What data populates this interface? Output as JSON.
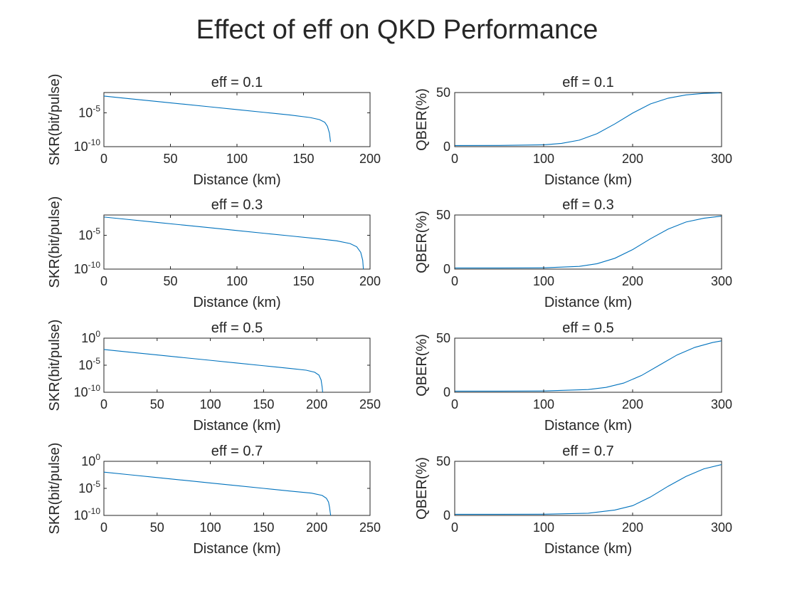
{
  "figure": {
    "title": "Effect of eff on QKD Performance"
  },
  "colors": {
    "line": "#0072BD",
    "axes": "#262626",
    "background": "#ffffff"
  },
  "chart_data": [
    {
      "type": "line",
      "title": "eff = 0.1",
      "xlabel": "Distance (km)",
      "ylabel": "SKR(bit/pulse)",
      "xlim": [
        0,
        200
      ],
      "ylim": [
        1e-10,
        0.01
      ],
      "yscale": "log",
      "xticks": [
        0,
        50,
        100,
        150,
        200
      ],
      "yticks": [
        {
          "value": 1e-10,
          "base": "10",
          "exp": "-10"
        },
        {
          "value": 1e-05,
          "base": "10",
          "exp": "-5"
        }
      ],
      "series": [
        {
          "x": [
            0,
            20,
            40,
            60,
            80,
            100,
            120,
            140,
            155,
            162,
            166,
            168,
            169.5,
            170.3
          ],
          "y": [
            0.003,
            0.00119,
            0.000477,
            0.00019,
            7.6e-05,
            3e-05,
            1.2e-05,
            4.8e-06,
            2e-06,
            1e-06,
            4e-07,
            1e-07,
            1e-08,
            5e-10
          ]
        }
      ]
    },
    {
      "type": "line",
      "title": "eff = 0.1",
      "xlabel": "Distance (km)",
      "ylabel": "QBER(%)",
      "xlim": [
        0,
        300
      ],
      "ylim": [
        0,
        50
      ],
      "yscale": "linear",
      "xticks": [
        0,
        100,
        200,
        300
      ],
      "yticks": [
        0,
        50
      ],
      "series": [
        {
          "x": [
            0,
            50,
            100,
            120,
            140,
            160,
            180,
            200,
            220,
            240,
            260,
            280,
            300
          ],
          "y": [
            1,
            1.1,
            1.7,
            3,
            6,
            12,
            21,
            31,
            39.5,
            44.8,
            47.8,
            49.2,
            49.7
          ]
        }
      ]
    },
    {
      "type": "line",
      "title": "eff = 0.3",
      "xlabel": "Distance (km)",
      "ylabel": "SKR(bit/pulse)",
      "xlim": [
        0,
        200
      ],
      "ylim": [
        1e-10,
        0.01
      ],
      "yscale": "log",
      "xticks": [
        0,
        50,
        100,
        150,
        200
      ],
      "yticks": [
        {
          "value": 1e-10,
          "base": "10",
          "exp": "-10"
        },
        {
          "value": 1e-05,
          "base": "10",
          "exp": "-5"
        }
      ],
      "series": [
        {
          "x": [
            0,
            20,
            40,
            60,
            80,
            100,
            120,
            140,
            160,
            175,
            185,
            190,
            193,
            194.5,
            195
          ],
          "y": [
            0.005,
            0.002,
            0.0008,
            0.00032,
            0.000128,
            5.1e-05,
            2e-05,
            8.1e-06,
            3.2e-06,
            1.5e-06,
            6e-07,
            2e-07,
            3e-08,
            2e-09,
            1e-10
          ]
        }
      ]
    },
    {
      "type": "line",
      "title": "eff = 0.3",
      "xlabel": "Distance (km)",
      "ylabel": "QBER(%)",
      "xlim": [
        0,
        300
      ],
      "ylim": [
        0,
        50
      ],
      "yscale": "linear",
      "xticks": [
        0,
        100,
        200,
        300
      ],
      "yticks": [
        0,
        50
      ],
      "series": [
        {
          "x": [
            0,
            50,
            100,
            140,
            160,
            180,
            200,
            220,
            240,
            260,
            280,
            300
          ],
          "y": [
            1,
            1,
            1.2,
            2.5,
            5,
            10,
            18,
            28,
            37,
            43.5,
            47,
            49
          ]
        }
      ]
    },
    {
      "type": "line",
      "title": "eff = 0.5",
      "xlabel": "Distance (km)",
      "ylabel": "SKR(bit/pulse)",
      "xlim": [
        0,
        250
      ],
      "ylim": [
        1e-10,
        1
      ],
      "yscale": "log",
      "xticks": [
        0,
        50,
        100,
        150,
        200,
        250
      ],
      "yticks": [
        {
          "value": 1e-10,
          "base": "10",
          "exp": "-10"
        },
        {
          "value": 1e-05,
          "base": "10",
          "exp": "-5"
        },
        {
          "value": 1,
          "base": "10",
          "exp": "0"
        }
      ],
      "series": [
        {
          "x": [
            0,
            25,
            50,
            75,
            100,
            125,
            150,
            175,
            190,
            198,
            202,
            204,
            205,
            205.5
          ],
          "y": [
            0.008,
            0.0025,
            0.0008,
            0.00025,
            8e-05,
            2.5e-05,
            8e-06,
            2.5e-06,
            1.2e-06,
            5e-07,
            1.5e-07,
            2e-08,
            1e-09,
            1e-10
          ]
        }
      ]
    },
    {
      "type": "line",
      "title": "eff = 0.5",
      "xlabel": "Distance (km)",
      "ylabel": "QBER(%)",
      "xlim": [
        0,
        300
      ],
      "ylim": [
        0,
        50
      ],
      "yscale": "linear",
      "xticks": [
        0,
        100,
        200,
        300
      ],
      "yticks": [
        0,
        50
      ],
      "series": [
        {
          "x": [
            0,
            50,
            100,
            150,
            170,
            190,
            210,
            230,
            250,
            270,
            290,
            300
          ],
          "y": [
            1,
            1,
            1.2,
            2.5,
            4.5,
            8.5,
            15.5,
            25,
            34.5,
            41.5,
            46,
            47.5
          ]
        }
      ]
    },
    {
      "type": "line",
      "title": "eff = 0.7",
      "xlabel": "Distance (km)",
      "ylabel": "SKR(bit/pulse)",
      "xlim": [
        0,
        250
      ],
      "ylim": [
        1e-10,
        1
      ],
      "yscale": "log",
      "xticks": [
        0,
        50,
        100,
        150,
        200,
        250
      ],
      "yticks": [
        {
          "value": 1e-10,
          "base": "10",
          "exp": "-10"
        },
        {
          "value": 1e-05,
          "base": "10",
          "exp": "-5"
        },
        {
          "value": 1,
          "base": "10",
          "exp": "0"
        }
      ],
      "series": [
        {
          "x": [
            0,
            25,
            50,
            75,
            100,
            125,
            150,
            175,
            195,
            205,
            209,
            211,
            212,
            212.5,
            213
          ],
          "y": [
            0.01,
            0.00316,
            0.001,
            0.000316,
            0.0001,
            3.16e-05,
            1e-05,
            3.16e-06,
            1.3e-06,
            5e-07,
            1.5e-07,
            3e-08,
            3e-09,
            5e-10,
            1e-10
          ]
        }
      ]
    },
    {
      "type": "line",
      "title": "eff = 0.7",
      "xlabel": "Distance (km)",
      "ylabel": "QBER(%)",
      "xlim": [
        0,
        300
      ],
      "ylim": [
        0,
        50
      ],
      "yscale": "linear",
      "xticks": [
        0,
        100,
        200,
        300
      ],
      "yticks": [
        0,
        50
      ],
      "series": [
        {
          "x": [
            0,
            50,
            100,
            150,
            180,
            200,
            220,
            240,
            260,
            280,
            300
          ],
          "y": [
            1,
            1,
            1.1,
            2,
            5,
            9,
            17,
            27,
            36,
            43,
            47
          ]
        }
      ]
    }
  ]
}
